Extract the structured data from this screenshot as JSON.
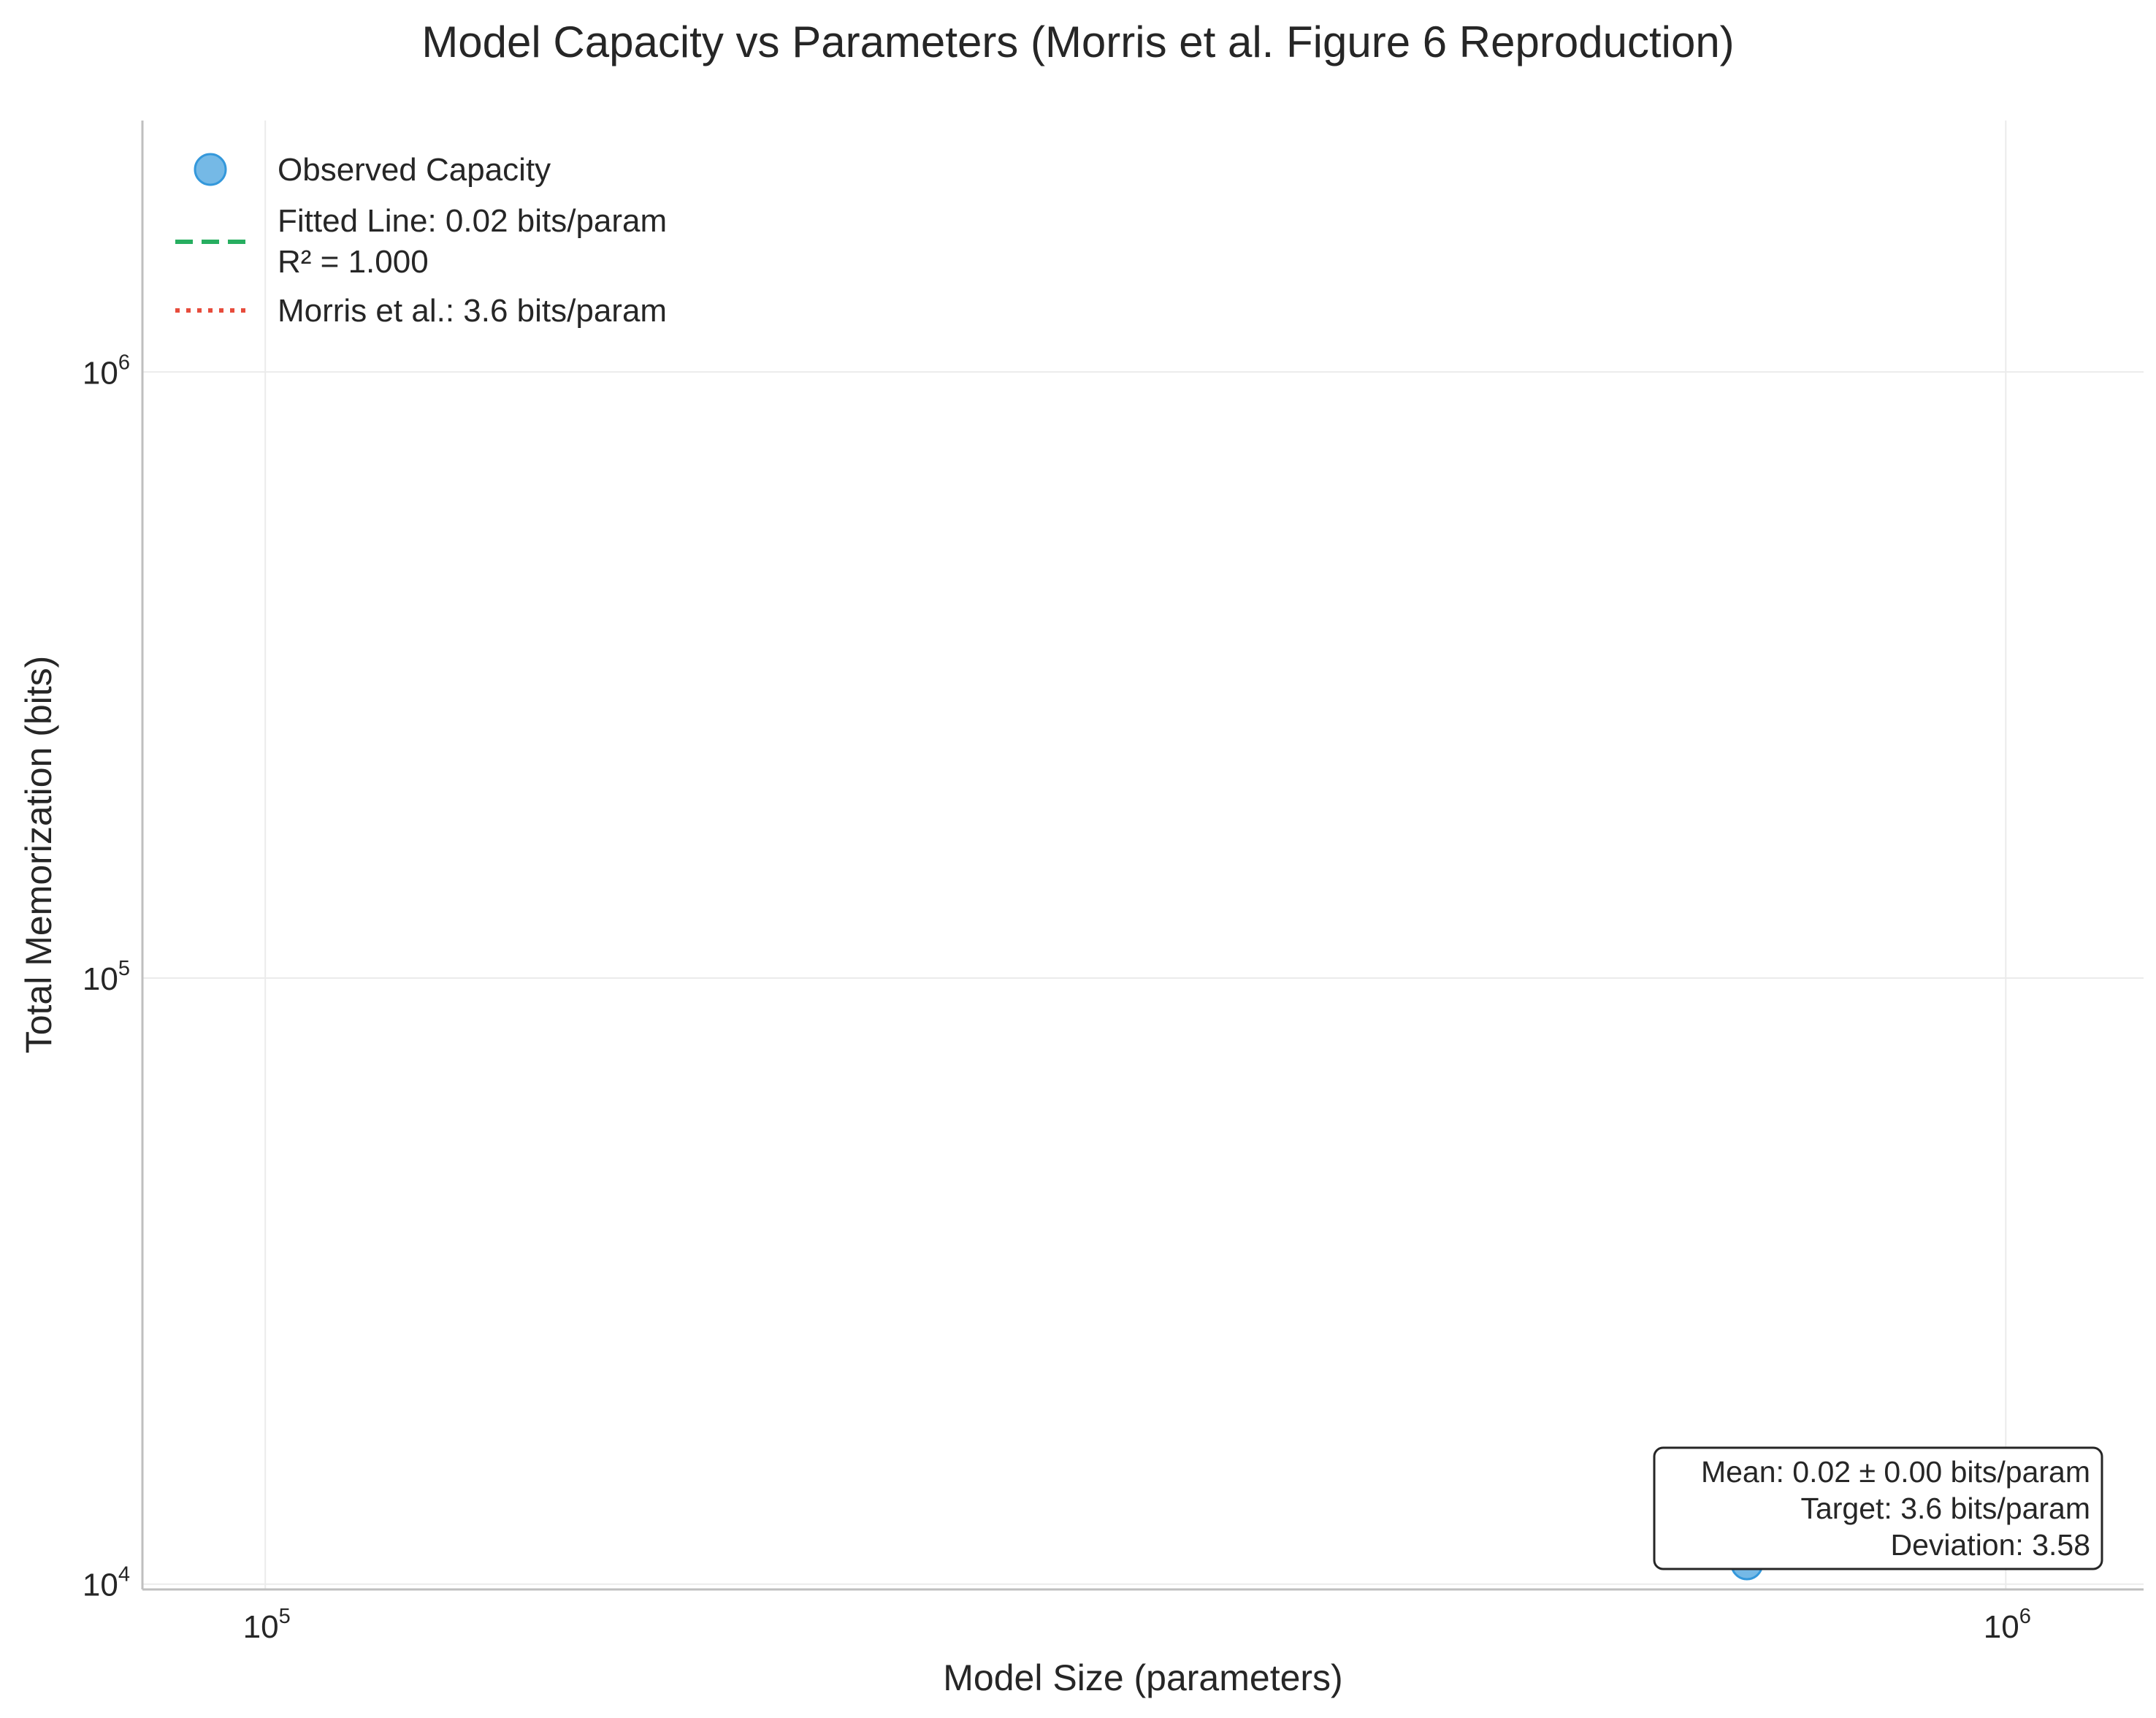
{
  "chart_data": {
    "type": "scatter",
    "title": "Model Capacity vs Parameters (Morris et al. Figure 6 Reproduction)",
    "xlabel": "Model Size (parameters)",
    "ylabel": "Total Memorization (bits)",
    "xscale": "log",
    "yscale": "log",
    "xlim": [
      85000,
      1200000
    ],
    "ylim": [
      9800,
      2600000
    ],
    "x_ticks": [
      {
        "value": 100000,
        "base": "10",
        "exp": "5"
      },
      {
        "value": 1000000,
        "base": "10",
        "exp": "6"
      }
    ],
    "y_ticks": [
      {
        "value": 10000,
        "base": "10",
        "exp": "4"
      },
      {
        "value": 100000,
        "base": "10",
        "exp": "5"
      },
      {
        "value": 1000000,
        "base": "10",
        "exp": "6"
      }
    ],
    "grid": true,
    "colors": {
      "observed": "#5dade2",
      "observed_edge": "#3498db",
      "fitted": "#27ae60",
      "morris": "#e74c3c",
      "text": "#262626",
      "grid": "#ebebeb",
      "spine": "#bfbfbf"
    },
    "legend": {
      "placement": "upper-left",
      "entries": [
        {
          "kind": "marker",
          "lines": [
            "Observed Capacity"
          ]
        },
        {
          "kind": "dashed",
          "lines": [
            "Fitted Line: 0.02 bits/param",
            "R² = 1.000"
          ]
        },
        {
          "kind": "dotted",
          "lines": [
            "Morris et al.: 3.6 bits/param"
          ]
        }
      ]
    },
    "series": [
      {
        "name": "Observed Capacity",
        "points": [
          {
            "x": 710000,
            "y": 10800
          }
        ]
      }
    ],
    "stats_box": {
      "placement": "lower-right",
      "lines": [
        "Mean: 0.02 ± 0.00 bits/param",
        "Target: 3.6 bits/param",
        "Deviation: 3.58"
      ]
    }
  }
}
